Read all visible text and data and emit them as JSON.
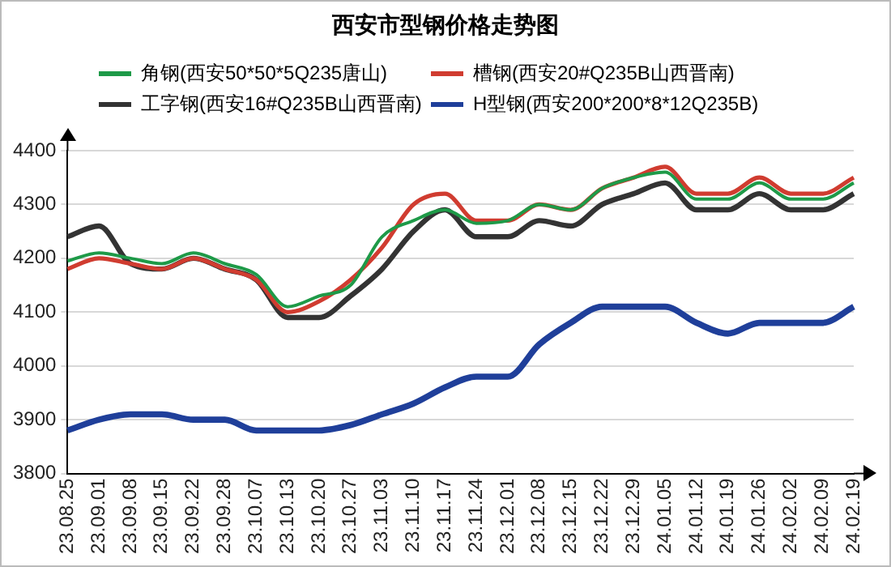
{
  "chart_data": {
    "type": "line",
    "title": "西安市型钢价格走势图",
    "categories": [
      "23.08.25",
      "23.09.01",
      "23.09.08",
      "23.09.15",
      "23.09.22",
      "23.09.28",
      "23.10.07",
      "23.10.13",
      "23.10.20",
      "23.10.27",
      "23.11.03",
      "23.11.10",
      "23.11.17",
      "23.11.24",
      "23.12.01",
      "23.12.08",
      "23.12.15",
      "23.12.22",
      "23.12.29",
      "24.01.05",
      "24.01.12",
      "24.01.19",
      "24.01.26",
      "24.02.02",
      "24.02.09",
      "24.02.19"
    ],
    "series": [
      {
        "name": "角钢(西安50*50*5Q235唐山)",
        "color": "#1e9a48",
        "values": [
          4195,
          4210,
          4200,
          4190,
          4210,
          4190,
          4170,
          4110,
          4130,
          4150,
          4240,
          4270,
          4290,
          4265,
          4270,
          4300,
          4290,
          4330,
          4350,
          4360,
          4310,
          4310,
          4340,
          4310,
          4310,
          4340
        ]
      },
      {
        "name": "槽钢(西安20#Q235B山西晋南)",
        "color": "#d03c30",
        "values": [
          4180,
          4200,
          4190,
          4180,
          4200,
          4180,
          4160,
          4100,
          4120,
          4160,
          4220,
          4300,
          4320,
          4270,
          4270,
          4300,
          4290,
          4330,
          4350,
          4370,
          4320,
          4320,
          4350,
          4320,
          4320,
          4350
        ]
      },
      {
        "name": "工字钢(西安16#Q235B山西晋南)",
        "color": "#333333",
        "values": [
          4240,
          4260,
          4190,
          4180,
          4200,
          4180,
          4160,
          4090,
          4090,
          4130,
          4180,
          4250,
          4290,
          4240,
          4240,
          4270,
          4260,
          4300,
          4320,
          4340,
          4290,
          4290,
          4320,
          4290,
          4290,
          4320
        ]
      },
      {
        "name": "H型钢(西安200*200*8*12Q235B)",
        "color": "#1f3f9a",
        "values": [
          3880,
          3900,
          3910,
          3910,
          3900,
          3900,
          3880,
          3880,
          3880,
          3890,
          3910,
          3930,
          3960,
          3980,
          3980,
          4040,
          4080,
          4110,
          4110,
          4110,
          4080,
          4060,
          4080,
          4080,
          4080,
          4110
        ]
      }
    ],
    "ylim": [
      3800,
      4400
    ],
    "yticks": [
      3800,
      3900,
      4000,
      4100,
      4200,
      4300,
      4400
    ],
    "grid": "y",
    "legend": "top",
    "marker": "none",
    "line_style": "solid"
  }
}
